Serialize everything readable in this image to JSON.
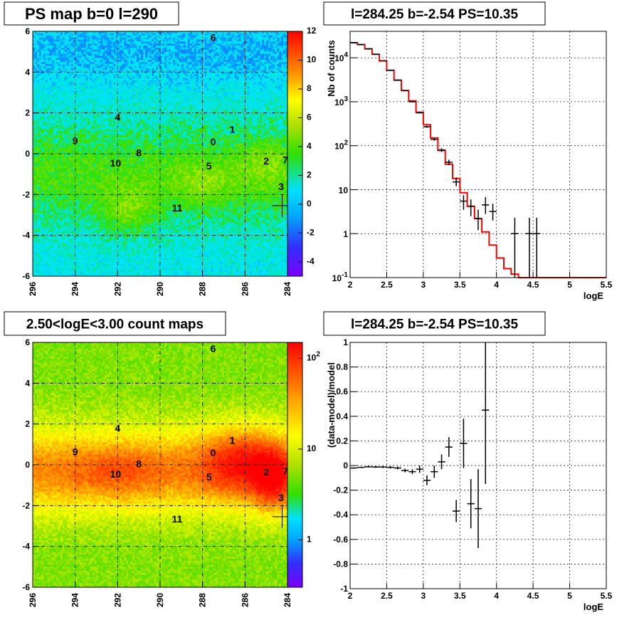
{
  "colors": {
    "model_line": "#ff0000",
    "data_points": "#000000"
  },
  "chart_data": [
    {
      "type": "heatmap",
      "title": "PS map b=0 l=290",
      "xlim": [
        296,
        284
      ],
      "ylim": [
        -6,
        6
      ],
      "x_ticks": [
        "296",
        "294",
        "292",
        "290",
        "288",
        "286",
        "284"
      ],
      "y_ticks": [
        "-6",
        "-4",
        "-2",
        "0",
        "2",
        "4",
        "6"
      ],
      "colorbar": {
        "scale": "linear",
        "range": [
          -5,
          12
        ],
        "ticks": [
          "12",
          "10",
          "8",
          "6",
          "4",
          "2",
          "0",
          "-2",
          "-4"
        ]
      },
      "sources": [
        {
          "label": "0",
          "l": 287.5,
          "b": 0.6
        },
        {
          "label": "1",
          "l": 286.6,
          "b": 1.2
        },
        {
          "label": "2",
          "l": 285.0,
          "b": -0.35
        },
        {
          "label": "3",
          "l": 284.3,
          "b": -1.6
        },
        {
          "label": "4",
          "l": 292.0,
          "b": 1.8
        },
        {
          "label": "5",
          "l": 287.7,
          "b": -0.6
        },
        {
          "label": "6",
          "l": 287.5,
          "b": 5.7
        },
        {
          "label": "7",
          "l": 284.1,
          "b": -0.3
        },
        {
          "label": "8",
          "l": 291.0,
          "b": 0.05
        },
        {
          "label": "9",
          "l": 294.0,
          "b": 0.65
        },
        {
          "label": "10",
          "l": 292.1,
          "b": -0.45
        },
        {
          "label": "11",
          "l": 289.2,
          "b": -2.65
        }
      ],
      "marker": {
        "l": 284.25,
        "b": -2.54
      }
    },
    {
      "type": "line",
      "title": "l=284.25 b=-2.54 PS=10.35",
      "xlabel": "logE",
      "ylabel": "Nb of counts",
      "xlim": [
        2,
        5.5
      ],
      "ylim": [
        0.1,
        40000
      ],
      "y_scale": "log",
      "x_ticks": [
        "2",
        "2.5",
        "3",
        "3.5",
        "4",
        "4.5",
        "5",
        "5.5"
      ],
      "y_ticks": [
        "10^-1",
        "1",
        "10",
        "10^2",
        "10^3",
        "10^4"
      ],
      "grid": true,
      "model_step": {
        "edges": [
          2.0,
          2.1,
          2.2,
          2.3,
          2.4,
          2.5,
          2.6,
          2.7,
          2.8,
          2.9,
          3.0,
          3.1,
          3.2,
          3.3,
          3.4,
          3.5,
          3.6,
          3.7,
          3.8,
          3.9,
          4.0,
          4.1,
          4.2,
          4.3,
          4.4,
          4.5,
          4.6,
          4.7,
          4.8,
          4.9,
          5.0,
          5.1,
          5.2,
          5.3,
          5.4,
          5.5
        ],
        "values": [
          22000,
          20000,
          16000,
          12000,
          8500,
          5200,
          3100,
          1800,
          1050,
          580,
          300,
          150,
          78,
          38,
          18,
          8.5,
          4.2,
          2.2,
          1.1,
          0.55,
          0.28,
          0.16,
          0.12,
          0.1,
          0.1,
          0.1,
          0.1,
          0.1,
          0.1,
          0.1,
          0.1,
          0.1,
          0.1,
          0.1,
          0.1
        ]
      },
      "data_points": [
        {
          "x": 2.05,
          "y": 22000,
          "ylo": 21700,
          "yhi": 22300
        },
        {
          "x": 2.15,
          "y": 20000,
          "ylo": 19700,
          "yhi": 20300
        },
        {
          "x": 2.25,
          "y": 16000,
          "ylo": 15700,
          "yhi": 16300
        },
        {
          "x": 2.35,
          "y": 12000,
          "ylo": 11800,
          "yhi": 12200
        },
        {
          "x": 2.45,
          "y": 8500,
          "ylo": 8300,
          "yhi": 8700
        },
        {
          "x": 2.55,
          "y": 5200,
          "ylo": 5050,
          "yhi": 5350
        },
        {
          "x": 2.65,
          "y": 3100,
          "ylo": 3000,
          "yhi": 3200
        },
        {
          "x": 2.75,
          "y": 1800,
          "ylo": 1750,
          "yhi": 1850
        },
        {
          "x": 2.85,
          "y": 1000,
          "ylo": 970,
          "yhi": 1030
        },
        {
          "x": 2.95,
          "y": 560,
          "ylo": 540,
          "yhi": 580
        },
        {
          "x": 3.05,
          "y": 270,
          "ylo": 255,
          "yhi": 285
        },
        {
          "x": 3.15,
          "y": 140,
          "ylo": 130,
          "yhi": 150
        },
        {
          "x": 3.25,
          "y": 80,
          "ylo": 72,
          "yhi": 88
        },
        {
          "x": 3.35,
          "y": 42,
          "ylo": 36,
          "yhi": 48
        },
        {
          "x": 3.45,
          "y": 15,
          "ylo": 12,
          "yhi": 19
        },
        {
          "x": 3.55,
          "y": 5.5,
          "ylo": 3.5,
          "yhi": 7.5
        },
        {
          "x": 3.65,
          "y": 4.2,
          "ylo": 2.5,
          "yhi": 6
        },
        {
          "x": 3.75,
          "y": 2.2,
          "ylo": 1.2,
          "yhi": 3.5
        },
        {
          "x": 3.85,
          "y": 4.5,
          "ylo": 2.8,
          "yhi": 6.8
        },
        {
          "x": 3.95,
          "y": 3.2,
          "ylo": 2,
          "yhi": 4.8
        },
        {
          "x": 4.25,
          "y": 1,
          "ylo": 0.1,
          "yhi": 2.3
        },
        {
          "x": 4.45,
          "y": 1,
          "ylo": 0.1,
          "yhi": 2.3
        },
        {
          "x": 4.55,
          "y": 1,
          "ylo": 0.1,
          "yhi": 2.3
        }
      ]
    },
    {
      "type": "heatmap",
      "title": "2.50<logE<3.00 count maps",
      "xlim": [
        296,
        284
      ],
      "ylim": [
        -6,
        6
      ],
      "x_ticks": [
        "296",
        "294",
        "292",
        "290",
        "288",
        "286",
        "284"
      ],
      "y_ticks": [
        "-6",
        "-4",
        "-2",
        "0",
        "2",
        "4",
        "6"
      ],
      "colorbar": {
        "scale": "log",
        "range": [
          0.3,
          150
        ],
        "ticks": [
          "10^2",
          "10",
          "1"
        ]
      },
      "sources": [
        {
          "label": "0",
          "l": 287.5,
          "b": 0.6
        },
        {
          "label": "1",
          "l": 286.6,
          "b": 1.2
        },
        {
          "label": "2",
          "l": 285.0,
          "b": -0.35
        },
        {
          "label": "3",
          "l": 284.3,
          "b": -1.6
        },
        {
          "label": "4",
          "l": 292.0,
          "b": 1.8
        },
        {
          "label": "5",
          "l": 287.7,
          "b": -0.6
        },
        {
          "label": "6",
          "l": 287.5,
          "b": 5.7
        },
        {
          "label": "7",
          "l": 284.1,
          "b": -0.3
        },
        {
          "label": "8",
          "l": 291.0,
          "b": 0.05
        },
        {
          "label": "9",
          "l": 294.0,
          "b": 0.65
        },
        {
          "label": "10",
          "l": 292.1,
          "b": -0.45
        },
        {
          "label": "11",
          "l": 289.2,
          "b": -2.65
        }
      ],
      "marker": {
        "l": 284.25,
        "b": -2.54
      }
    },
    {
      "type": "scatter",
      "title": "l=284.25 b=-2.54 PS=10.35",
      "xlabel": "logE",
      "ylabel": "(data-model)/model",
      "xlim": [
        2,
        5.5
      ],
      "ylim": [
        -1,
        1
      ],
      "x_ticks": [
        "2",
        "2.5",
        "3",
        "3.5",
        "4",
        "4.5",
        "5",
        "5.5"
      ],
      "y_ticks": [
        "-1",
        "-0.8",
        "-0.6",
        "-0.4",
        "-0.2",
        "0",
        "0.2",
        "0.4",
        "0.6",
        "0.8",
        "1"
      ],
      "grid": true,
      "data_points": [
        {
          "x": 2.05,
          "y": -0.02,
          "err": 0.005
        },
        {
          "x": 2.15,
          "y": -0.015,
          "err": 0.005
        },
        {
          "x": 2.25,
          "y": -0.01,
          "err": 0.006
        },
        {
          "x": 2.35,
          "y": -0.012,
          "err": 0.007
        },
        {
          "x": 2.45,
          "y": -0.012,
          "err": 0.008
        },
        {
          "x": 2.55,
          "y": -0.015,
          "err": 0.01
        },
        {
          "x": 2.65,
          "y": -0.02,
          "err": 0.012
        },
        {
          "x": 2.75,
          "y": -0.04,
          "err": 0.015
        },
        {
          "x": 2.85,
          "y": -0.05,
          "err": 0.02
        },
        {
          "x": 2.95,
          "y": -0.03,
          "err": 0.03
        },
        {
          "x": 3.05,
          "y": -0.12,
          "err": 0.04
        },
        {
          "x": 3.15,
          "y": -0.05,
          "err": 0.05
        },
        {
          "x": 3.25,
          "y": 0.03,
          "err": 0.06
        },
        {
          "x": 3.35,
          "y": 0.15,
          "err": 0.08
        },
        {
          "x": 3.45,
          "y": -0.37,
          "err": 0.09
        },
        {
          "x": 3.55,
          "y": 0.18,
          "err": 0.2
        },
        {
          "x": 3.65,
          "y": -0.31,
          "err": 0.2
        },
        {
          "x": 3.75,
          "y": -0.35,
          "err": 0.32
        },
        {
          "x": 3.85,
          "y": 0.45,
          "err": 0.6
        }
      ]
    }
  ]
}
